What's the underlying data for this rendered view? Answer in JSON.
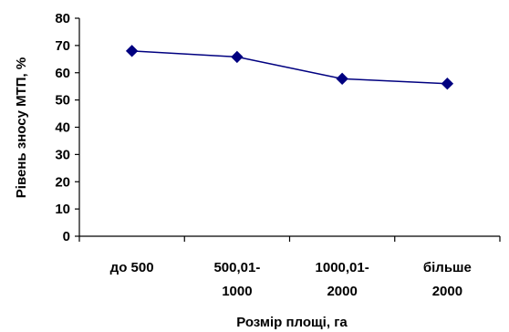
{
  "chart_data": {
    "type": "line",
    "categories": [
      [
        "до 500"
      ],
      [
        "500,01-",
        "1000"
      ],
      [
        "1000,01-",
        "2000"
      ],
      [
        "більше",
        "2000"
      ]
    ],
    "values": [
      68,
      65.8,
      57.8,
      56
    ],
    "xlabel": "Розмір площі, га",
    "ylabel": "Рівень зносу МТП, %",
    "ylim": [
      0,
      80
    ],
    "yticks": [
      0,
      10,
      20,
      30,
      40,
      50,
      60,
      70,
      80
    ],
    "grid": false,
    "legend": false,
    "colors": {
      "line": "#000080",
      "marker": "#000080",
      "axis": "#000000"
    }
  }
}
